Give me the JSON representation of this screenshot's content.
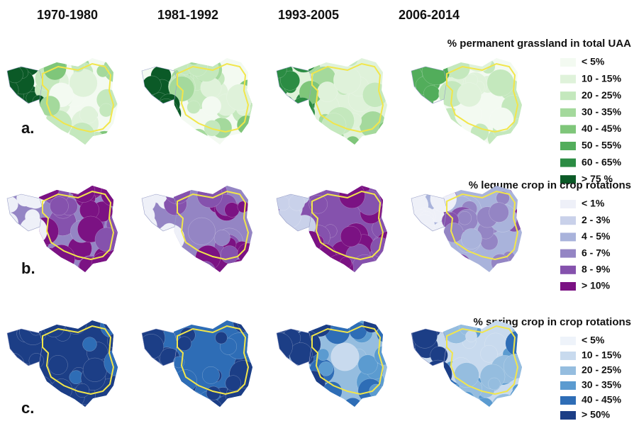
{
  "columns": [
    "1970-1980",
    "1981-1992",
    "1993-2005",
    "2006-2014"
  ],
  "panels": [
    {
      "label": "a.",
      "legend_title": "% permanent grassland in total UAA",
      "legend": [
        "< 5%",
        "10 - 15%",
        "20 - 25%",
        "30 - 35%",
        "40 - 45%",
        "50 - 55%",
        "60 - 65%",
        "> 75 %"
      ],
      "colors": [
        "#f3faf1",
        "#dff2da",
        "#c4e8bd",
        "#a4d99c",
        "#7fc67a",
        "#52ad5b",
        "#2b8c43",
        "#0b5a27"
      ]
    },
    {
      "label": "b.",
      "legend_title": "% legume crop in crop rotations",
      "legend": [
        "< 1%",
        "2 - 3%",
        "4 - 5%",
        "6 - 7%",
        "8 - 9%",
        "> 10%"
      ],
      "colors": [
        "#eef0f8",
        "#c9d1ea",
        "#a9b3db",
        "#9485c4",
        "#8552ad",
        "#7b1283"
      ]
    },
    {
      "label": "c.",
      "legend_title": "% spring crop in crop rotations",
      "legend": [
        "< 5%",
        "10 - 15%",
        "20 - 25%",
        "30 - 35%",
        "40 - 45%",
        "> 50%"
      ],
      "colors": [
        "#eef3fa",
        "#c8daee",
        "#95bddf",
        "#5b9bd0",
        "#2e6db6",
        "#1c3e86"
      ]
    }
  ]
}
